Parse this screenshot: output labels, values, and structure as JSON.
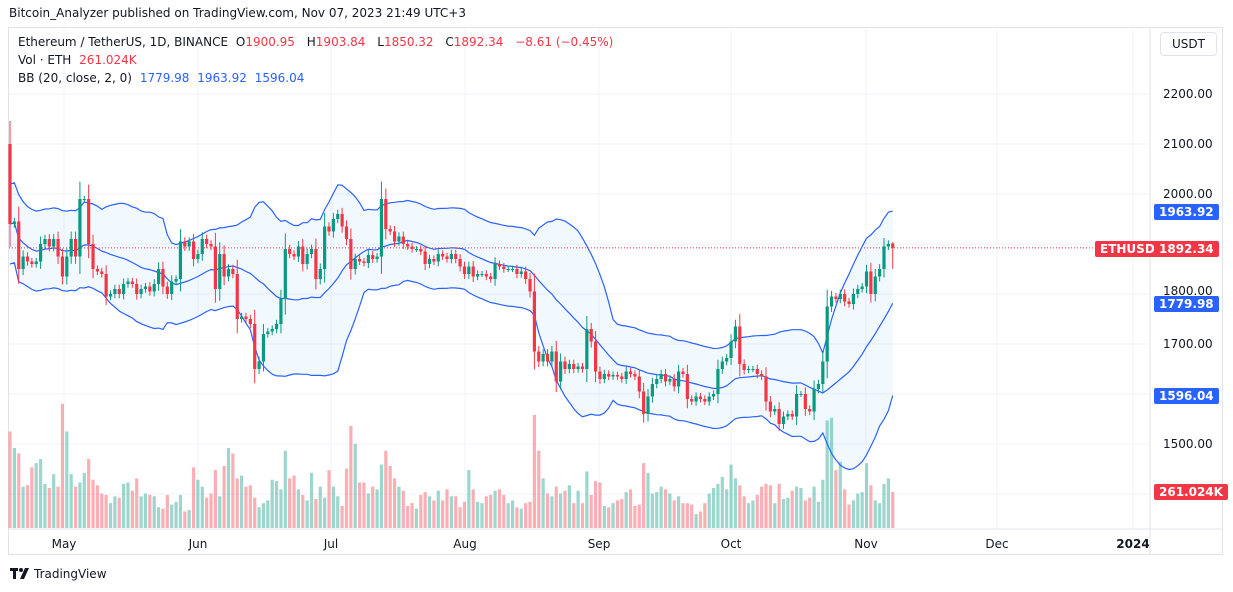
{
  "published": "Bitcoin_Analyzer published on TradingView.com, Nov 07, 2023 21:49 UTC+3",
  "legend": {
    "symbol": "Ethereum / TetherUS, 1D, BINANCE",
    "open_label": "O",
    "open": "1900.95",
    "high_label": "H",
    "high": "1903.84",
    "low_label": "L",
    "low": "1850.32",
    "close_label": "C",
    "close": "1892.34",
    "change": "−8.61 (−0.45%)",
    "vol_label": "Vol · ETH",
    "vol": "261.024K",
    "bb_label": "BB (20, close, 2, 0)",
    "bb_basis": "1779.98",
    "bb_upper": "1963.92",
    "bb_lower": "1596.04"
  },
  "currency_button": "USDT",
  "price_tags": {
    "symbol": "ETHUSDT",
    "last": "1892.34",
    "upper": "1963.92",
    "basis": "1779.98",
    "lower": "1596.04",
    "volume": "261.024K"
  },
  "footer_logo": "TradingView",
  "colors": {
    "up": "#089981",
    "down": "#f23645",
    "bb": "#2962ff",
    "bb_fill": "#2196f3"
  },
  "chart_data": {
    "type": "candlestick",
    "x_start": "2023-04-19",
    "x_ticks": [
      "May",
      "Jun",
      "Jul",
      "Aug",
      "Sep",
      "Oct",
      "Nov",
      "Dec",
      "2024"
    ],
    "y_ticks": [
      "2200.00",
      "2100.00",
      "2000.00",
      "1800.00",
      "1700.00",
      "1500.00"
    ],
    "ylim": [
      1400,
      2300
    ],
    "grid": true,
    "first_open": 2100,
    "last_candle": {
      "open": 1900.95,
      "high": 1903.84,
      "low": 1850.32,
      "close": 1892.34
    },
    "close": [
      1940,
      1945,
      1850,
      1875,
      1865,
      1860,
      1865,
      1900,
      1910,
      1895,
      1910,
      1875,
      1835,
      1875,
      1910,
      1875,
      1990,
      1990,
      1900,
      1850,
      1845,
      1840,
      1795,
      1800,
      1810,
      1800,
      1820,
      1825,
      1820,
      1800,
      1810,
      1815,
      1805,
      1820,
      1850,
      1815,
      1800,
      1825,
      1830,
      1905,
      1895,
      1905,
      1870,
      1880,
      1910,
      1900,
      1895,
      1810,
      1880,
      1835,
      1850,
      1840,
      1750,
      1755,
      1750,
      1740,
      1650,
      1665,
      1720,
      1725,
      1730,
      1740,
      1790,
      1890,
      1880,
      1875,
      1895,
      1860,
      1880,
      1890,
      1830,
      1850,
      1935,
      1925,
      1950,
      1960,
      1935,
      1910,
      1850,
      1870,
      1865,
      1862,
      1878,
      1870,
      1875,
      1990,
      1930,
      1925,
      1905,
      1915,
      1900,
      1895,
      1890,
      1890,
      1885,
      1860,
      1870,
      1865,
      1880,
      1875,
      1870,
      1880,
      1870,
      1855,
      1840,
      1855,
      1835,
      1840,
      1840,
      1835,
      1830,
      1860,
      1855,
      1850,
      1850,
      1850,
      1840,
      1845,
      1830,
      1805,
      1685,
      1665,
      1680,
      1665,
      1685,
      1625,
      1665,
      1650,
      1660,
      1650,
      1655,
      1650,
      1730,
      1705,
      1645,
      1630,
      1640,
      1635,
      1638,
      1635,
      1630,
      1645,
      1640,
      1635,
      1605,
      1560,
      1595,
      1620,
      1630,
      1640,
      1625,
      1630,
      1615,
      1645,
      1640,
      1590,
      1585,
      1595,
      1590,
      1585,
      1595,
      1600,
      1650,
      1665,
      1672,
      1705,
      1735,
      1660,
      1648,
      1650,
      1650,
      1640,
      1635,
      1585,
      1565,
      1570,
      1540,
      1555,
      1560,
      1555,
      1600,
      1600,
      1570,
      1565,
      1610,
      1620,
      1665,
      1775,
      1795,
      1790,
      1800,
      1785,
      1780,
      1800,
      1810,
      1815,
      1845,
      1800,
      1835,
      1850,
      1895,
      1900,
      1892.34
    ],
    "volume_k": [
      700,
      580,
      540,
      300,
      310,
      440,
      470,
      500,
      320,
      290,
      390,
      300,
      900,
      700,
      390,
      300,
      330,
      400,
      500,
      350,
      310,
      250,
      240,
      180,
      230,
      220,
      320,
      330,
      270,
      360,
      230,
      250,
      240,
      230,
      150,
      140,
      240,
      170,
      190,
      240,
      120,
      130,
      440,
      350,
      300,
      220,
      250,
      420,
      230,
      450,
      580,
      540,
      360,
      380,
      300,
      310,
      220,
      150,
      180,
      200,
      350,
      340,
      280,
      560,
      360,
      380,
      280,
      240,
      200,
      400,
      210,
      300,
      220,
      420,
      300,
      230,
      160,
      430,
      740,
      610,
      330,
      330,
      250,
      300,
      280,
      460,
      560,
      450,
      360,
      300,
      270,
      160,
      180,
      140,
      240,
      260,
      230,
      200,
      270,
      200,
      280,
      230,
      230,
      150,
      190,
      420,
      280,
      190,
      180,
      230,
      240,
      270,
      280,
      240,
      180,
      200,
      150,
      140,
      180,
      190,
      820,
      560,
      360,
      250,
      230,
      300,
      250,
      270,
      310,
      180,
      270,
      180,
      410,
      240,
      340,
      330,
      160,
      150,
      180,
      200,
      210,
      260,
      280,
      160,
      170,
      470,
      400,
      250,
      260,
      300,
      280,
      250,
      200,
      230,
      180,
      180,
      170,
      100,
      120,
      180,
      250,
      290,
      320,
      370,
      280,
      460,
      360,
      310,
      230,
      180,
      200,
      240,
      300,
      320,
      310,
      180,
      320,
      210,
      220,
      270,
      300,
      290,
      200,
      220,
      300,
      190,
      350,
      780,
      800,
      420,
      480,
      280,
      170,
      200,
      250,
      260,
      470,
      310,
      200,
      180,
      320,
      360,
      261.024
    ]
  }
}
